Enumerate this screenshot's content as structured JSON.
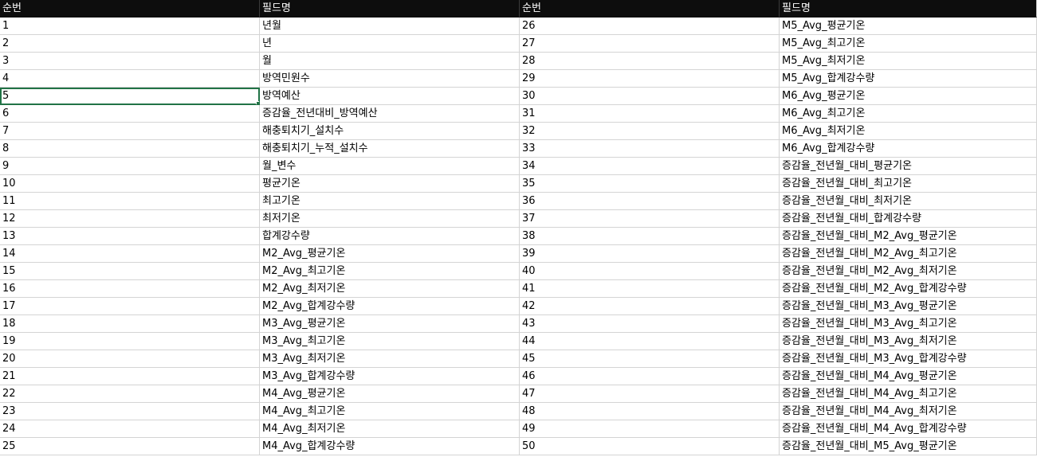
{
  "header": {
    "col1": "순번",
    "col2": "필드명",
    "col3": "순번",
    "col4": "필드명"
  },
  "rows": [
    {
      "n1": "1",
      "f1": "년월",
      "n2": "26",
      "f2": "M5_Avg_평균기온"
    },
    {
      "n1": "2",
      "f1": "년",
      "n2": "27",
      "f2": "M5_Avg_최고기온"
    },
    {
      "n1": "3",
      "f1": "월",
      "n2": "28",
      "f2": "M5_Avg_최저기온"
    },
    {
      "n1": "4",
      "f1": "방역민원수",
      "n2": "29",
      "f2": "M5_Avg_합계강수량"
    },
    {
      "n1": "5",
      "f1": "방역예산",
      "n2": "30",
      "f2": "M6_Avg_평균기온"
    },
    {
      "n1": "6",
      "f1": "증감율_전년대비_방역예산",
      "n2": "31",
      "f2": "M6_Avg_최고기온"
    },
    {
      "n1": "7",
      "f1": "해충퇴치기_설치수",
      "n2": "32",
      "f2": "M6_Avg_최저기온"
    },
    {
      "n1": "8",
      "f1": "해충퇴치기_누적_설치수",
      "n2": "33",
      "f2": "M6_Avg_합계강수량"
    },
    {
      "n1": "9",
      "f1": "월_변수",
      "n2": "34",
      "f2": "증감율_전년월_대비_평균기온"
    },
    {
      "n1": "10",
      "f1": "평균기온",
      "n2": "35",
      "f2": "증감율_전년월_대비_최고기온"
    },
    {
      "n1": "11",
      "f1": "최고기온",
      "n2": "36",
      "f2": "증감율_전년월_대비_최저기온"
    },
    {
      "n1": "12",
      "f1": "최저기온",
      "n2": "37",
      "f2": "증감율_전년월_대비_합계강수량"
    },
    {
      "n1": "13",
      "f1": "합계강수량",
      "n2": "38",
      "f2": "증감율_전년월_대비_M2_Avg_평균기온"
    },
    {
      "n1": "14",
      "f1": "M2_Avg_평균기온",
      "n2": "39",
      "f2": "증감율_전년월_대비_M2_Avg_최고기온"
    },
    {
      "n1": "15",
      "f1": "M2_Avg_최고기온",
      "n2": "40",
      "f2": "증감율_전년월_대비_M2_Avg_최저기온"
    },
    {
      "n1": "16",
      "f1": "M2_Avg_최저기온",
      "n2": "41",
      "f2": "증감율_전년월_대비_M2_Avg_합계강수량"
    },
    {
      "n1": "17",
      "f1": "M2_Avg_합계강수량",
      "n2": "42",
      "f2": "증감율_전년월_대비_M3_Avg_평균기온"
    },
    {
      "n1": "18",
      "f1": "M3_Avg_평균기온",
      "n2": "43",
      "f2": "증감율_전년월_대비_M3_Avg_최고기온"
    },
    {
      "n1": "19",
      "f1": "M3_Avg_최고기온",
      "n2": "44",
      "f2": "증감율_전년월_대비_M3_Avg_최저기온"
    },
    {
      "n1": "20",
      "f1": "M3_Avg_최저기온",
      "n2": "45",
      "f2": "증감율_전년월_대비_M3_Avg_합계강수량"
    },
    {
      "n1": "21",
      "f1": "M3_Avg_합계강수량",
      "n2": "46",
      "f2": "증감율_전년월_대비_M4_Avg_평균기온"
    },
    {
      "n1": "22",
      "f1": "M4_Avg_평균기온",
      "n2": "47",
      "f2": "증감율_전년월_대비_M4_Avg_최고기온"
    },
    {
      "n1": "23",
      "f1": "M4_Avg_최고기온",
      "n2": "48",
      "f2": "증감율_전년월_대비_M4_Avg_최저기온"
    },
    {
      "n1": "24",
      "f1": "M4_Avg_최저기온",
      "n2": "49",
      "f2": "증감율_전년월_대비_M4_Avg_합계강수량"
    },
    {
      "n1": "25",
      "f1": "M4_Avg_합계강수량",
      "n2": "50",
      "f2": "증감율_전년월_대비_M5_Avg_평균기온"
    }
  ],
  "selection": {
    "row": 4,
    "column": "n1"
  },
  "colors": {
    "header_bg": "#0d0d0d",
    "header_text": "#ffffff",
    "gridline": "#d4d4d4",
    "selection": "#217346"
  }
}
